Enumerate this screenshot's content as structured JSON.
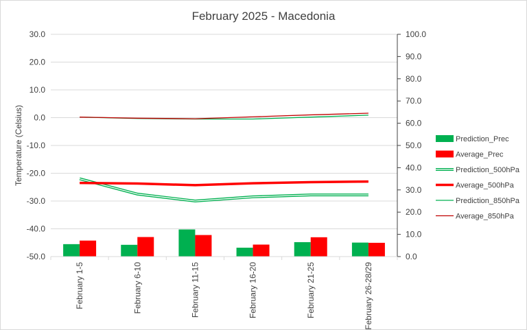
{
  "chart_data": {
    "type": "bar",
    "title": "February 2025 - Macedonia",
    "ylabel": "Temperature (Celsius)",
    "xlabel": "",
    "y_left": {
      "ylim": [
        -50,
        30
      ],
      "ticks": [
        "30.0",
        "20.0",
        "10.0",
        "0.0",
        "-10.0",
        "-20.0",
        "-30.0",
        "-40.0",
        "-50.0"
      ],
      "tick_values": [
        30,
        20,
        10,
        0,
        -10,
        -20,
        -30,
        -40,
        -50
      ]
    },
    "y_right": {
      "ylim": [
        0,
        100
      ],
      "ticks": [
        "100.0",
        "90.0",
        "80.0",
        "70.0",
        "60.0",
        "50.0",
        "40.0",
        "30.0",
        "20.0",
        "10.0",
        "0.0"
      ],
      "tick_values": [
        100,
        90,
        80,
        70,
        60,
        50,
        40,
        30,
        20,
        10,
        0
      ]
    },
    "grid": "horizontal",
    "legend_position": "right",
    "categories": [
      "February 1-5",
      "February 6-10",
      "February 11-15",
      "February 16-20",
      "February 21-25",
      "February 26-28/29"
    ],
    "series": [
      {
        "name": "Prediction_Prec",
        "kind": "bar",
        "axis": "right",
        "color": "#00b050",
        "values": [
          5.6,
          5.3,
          12.2,
          4.0,
          6.5,
          6.3
        ]
      },
      {
        "name": "Average_Prec",
        "kind": "bar",
        "axis": "right",
        "color": "#ff0000",
        "values": [
          7.2,
          8.8,
          9.7,
          5.4,
          8.7,
          6.2
        ]
      },
      {
        "name": "Prediction_500hPa",
        "kind": "line",
        "style": "double",
        "axis": "left",
        "color": "#00b050",
        "values": [
          -22.0,
          -27.5,
          -30.0,
          -28.5,
          -27.8,
          -27.8
        ]
      },
      {
        "name": "Average_500hPa",
        "kind": "line",
        "style": "thick",
        "axis": "left",
        "color": "#ff0000",
        "values": [
          -23.5,
          -23.7,
          -24.3,
          -23.6,
          -23.2,
          -23.0
        ]
      },
      {
        "name": "Prediction_850hPa",
        "kind": "line",
        "style": "thin",
        "axis": "left",
        "color": "#00b050",
        "values": [
          0.2,
          -0.3,
          -0.5,
          -0.5,
          0.2,
          0.9
        ]
      },
      {
        "name": "Average_850hPa",
        "kind": "line",
        "style": "thin",
        "axis": "left",
        "color": "#c00000",
        "values": [
          0.2,
          -0.2,
          -0.4,
          0.3,
          1.0,
          1.6
        ]
      }
    ]
  }
}
